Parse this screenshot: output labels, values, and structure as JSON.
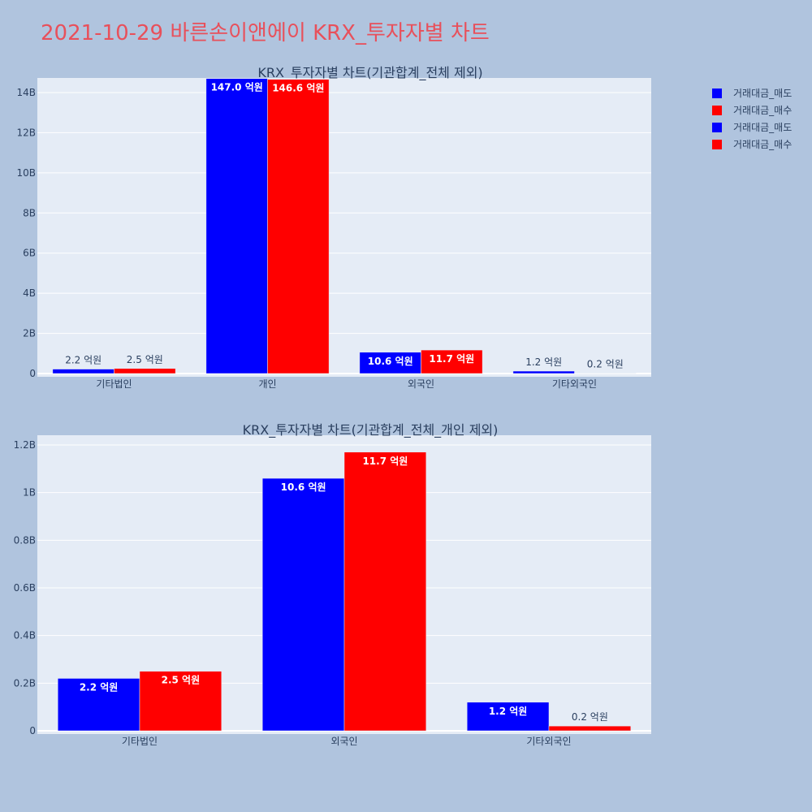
{
  "title": "2021-10-29 바른손이앤에이 KRX_투자자별 차트",
  "legend": [
    {
      "label": "거래대금_매도",
      "color": "#0000ff"
    },
    {
      "label": "거래대금_매수",
      "color": "#ff0000"
    },
    {
      "label": "거래대금_매도",
      "color": "#0000ff"
    },
    {
      "label": "거래대금_매수",
      "color": "#ff0000"
    }
  ],
  "chart_data": [
    {
      "type": "bar",
      "title": "KRX_투자자별 차트(기관합계_전체 제외)",
      "categories": [
        "기타법인",
        "개인",
        "외국인",
        "기타외국인"
      ],
      "ylim": [
        0,
        15000000000
      ],
      "ytick_values": [
        0,
        2000000000,
        4000000000,
        6000000000,
        8000000000,
        10000000000,
        12000000000,
        14000000000
      ],
      "ytick_labels": [
        "0",
        "2B",
        "4B",
        "6B",
        "8B",
        "10B",
        "12B",
        "14B"
      ],
      "series": [
        {
          "name": "거래대금_매도",
          "color": "#0000ff",
          "values": [
            220000000,
            14700000000,
            1060000000,
            120000000
          ],
          "labels": [
            "2.2 억원",
            "147.0 억원",
            "10.6 억원",
            "1.2 억원"
          ]
        },
        {
          "name": "거래대금_매수",
          "color": "#ff0000",
          "values": [
            250000000,
            14660000000,
            1170000000,
            20000000
          ],
          "labels": [
            "2.5 억원",
            "146.6 억원",
            "11.7 억원",
            "0.2 억원"
          ]
        }
      ],
      "grid": true
    },
    {
      "type": "bar",
      "title": "KRX_투자자별 차트(기관합계_전체_개인 제외)",
      "categories": [
        "기타법인",
        "외국인",
        "기타외국인"
      ],
      "ylim": [
        0,
        1240000000
      ],
      "ytick_values": [
        0,
        200000000,
        400000000,
        600000000,
        800000000,
        1000000000,
        1200000000
      ],
      "ytick_labels": [
        "0",
        "0.2B",
        "0.4B",
        "0.6B",
        "0.8B",
        "1B",
        "1.2B"
      ],
      "series": [
        {
          "name": "거래대금_매도",
          "color": "#0000ff",
          "values": [
            220000000,
            1060000000,
            120000000
          ],
          "labels": [
            "2.2 억원",
            "10.6 억원",
            "1.2 억원"
          ]
        },
        {
          "name": "거래대금_매수",
          "color": "#ff0000",
          "values": [
            250000000,
            1170000000,
            20000000
          ],
          "labels": [
            "2.5 억원",
            "11.7 억원",
            "0.2 억원"
          ]
        }
      ],
      "grid": true
    }
  ]
}
